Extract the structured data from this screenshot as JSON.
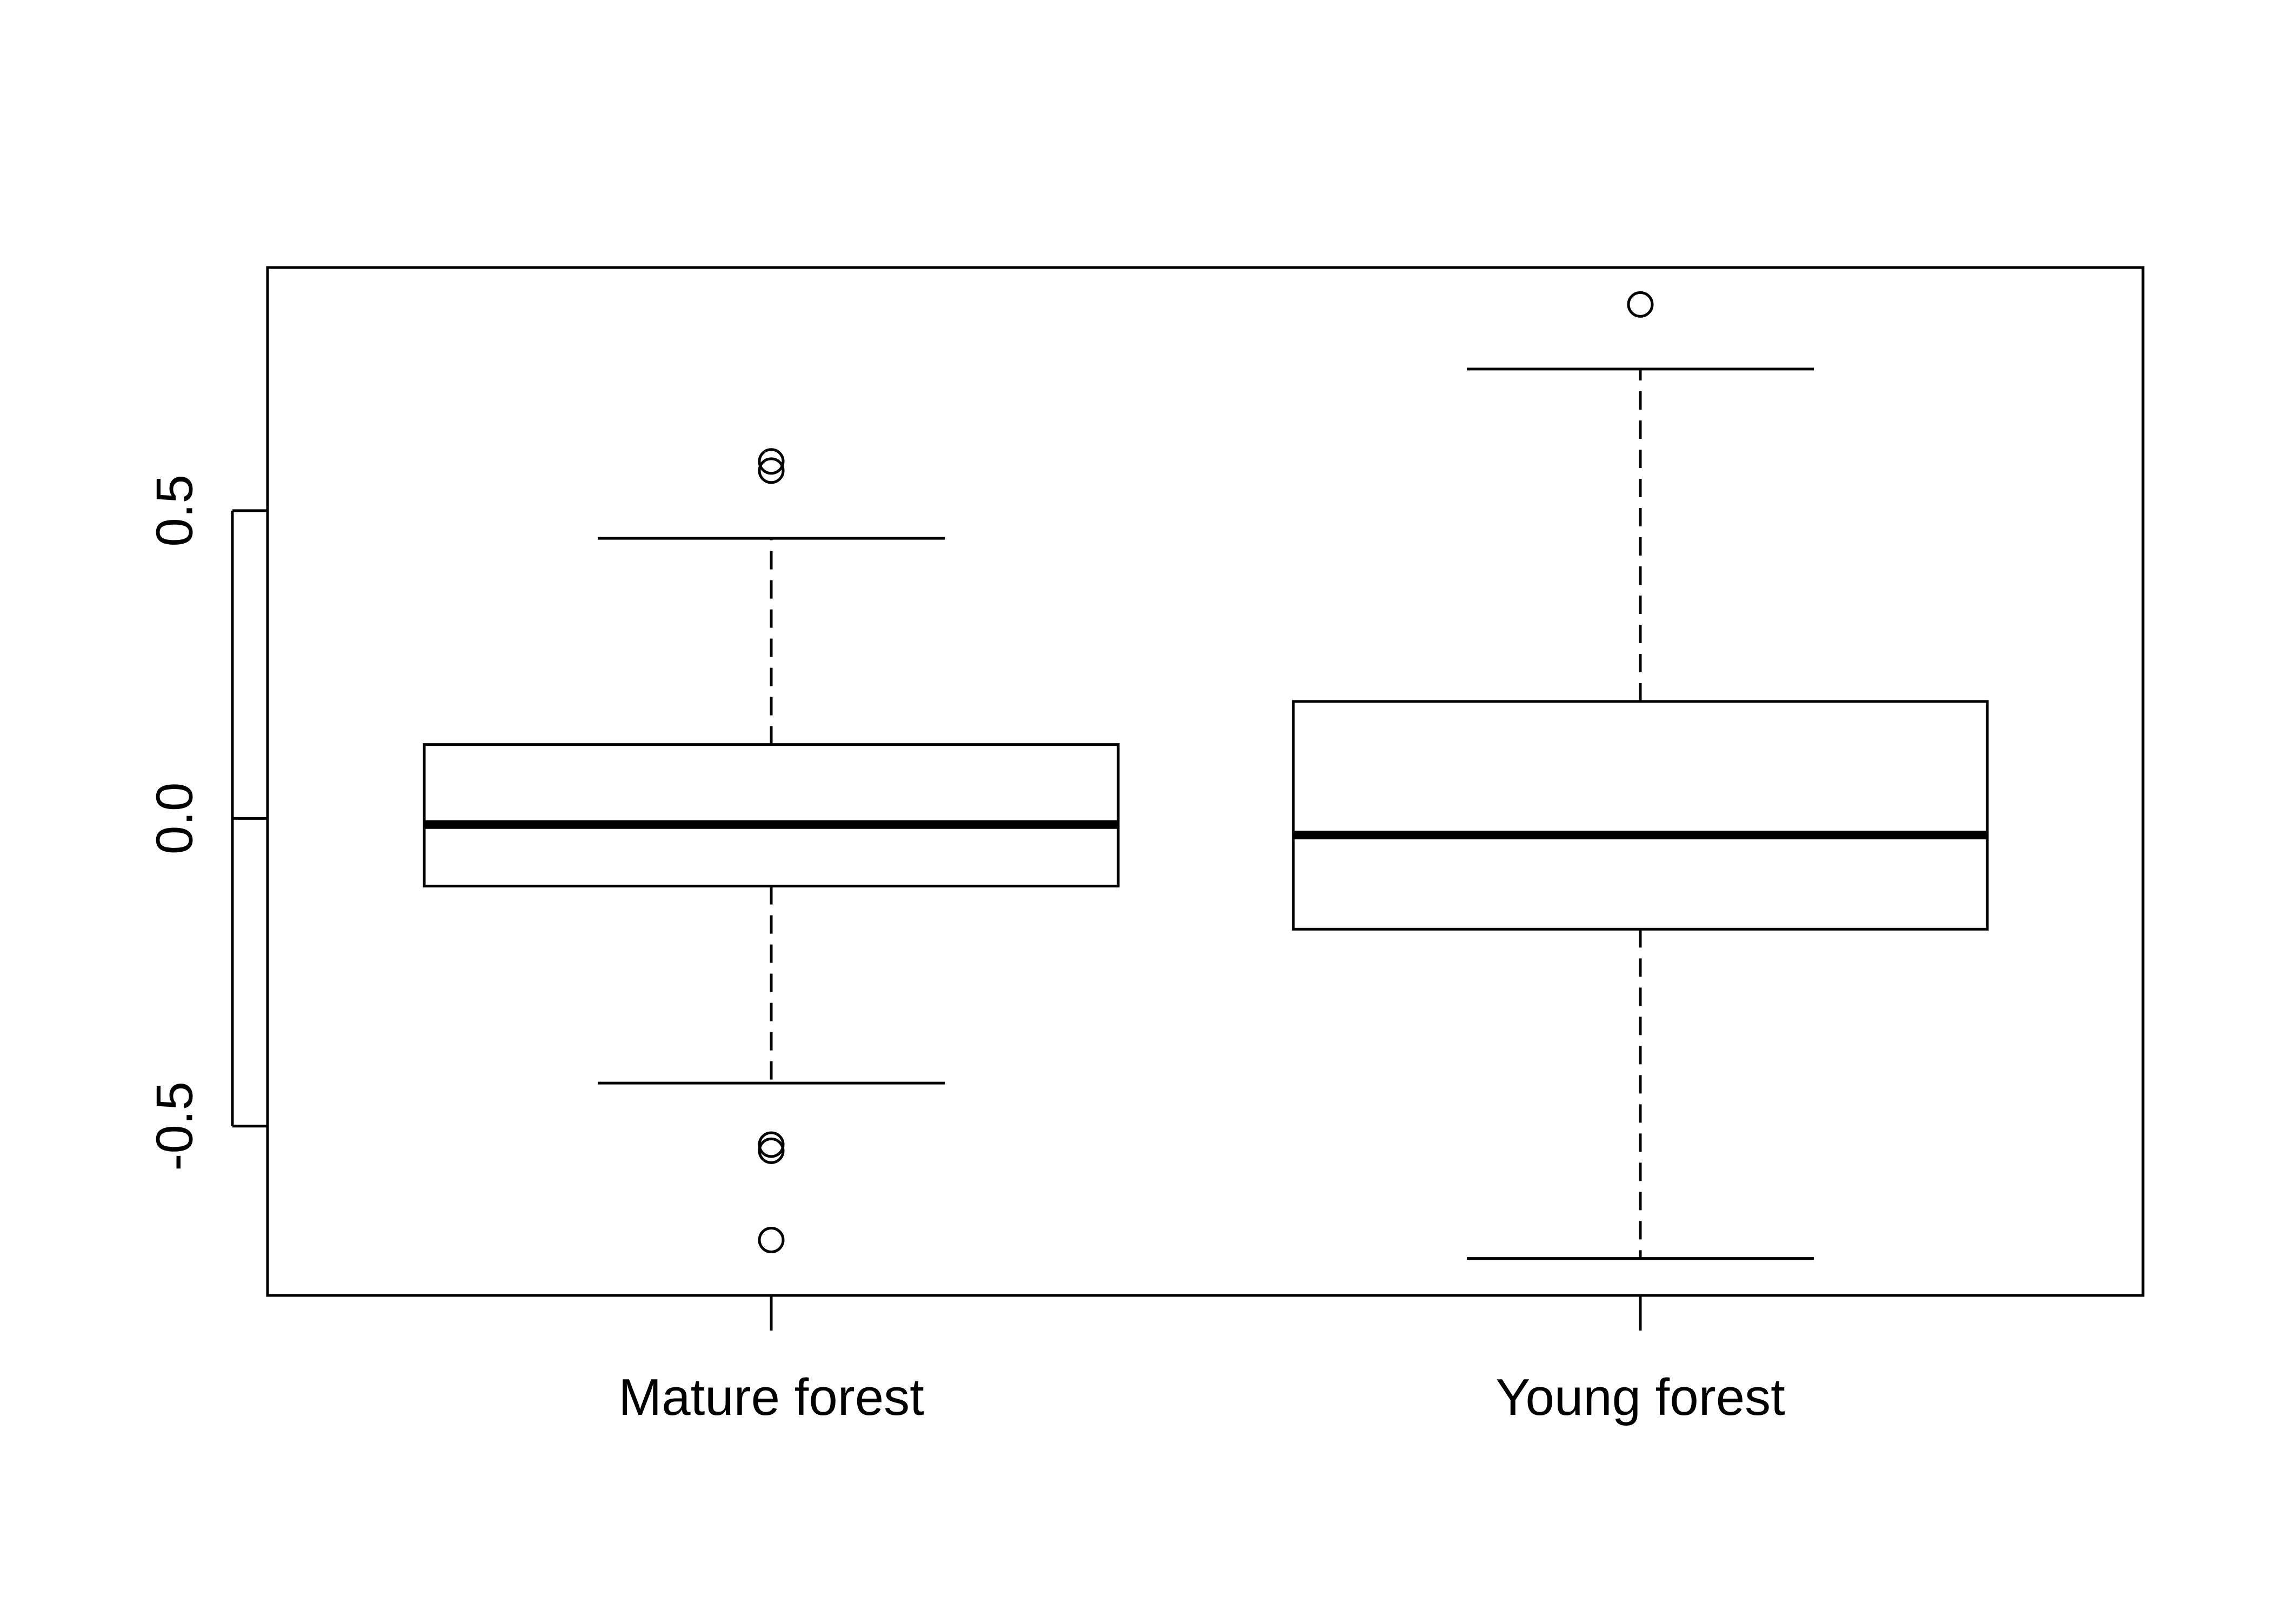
{
  "chart_data": {
    "type": "box",
    "categories": [
      "Mature forest",
      "Young forest"
    ],
    "yticks": [
      -0.5,
      0.0,
      0.5
    ],
    "ytick_labels": [
      "-0.5",
      "0.0",
      "0.5"
    ],
    "ylim": [
      -0.775,
      0.895
    ],
    "grid": false,
    "boxes": [
      {
        "name": "Mature forest",
        "whisker_low": -0.43,
        "q1": -0.11,
        "median": -0.01,
        "q3": 0.12,
        "whisker_high": 0.455,
        "outliers": [
          0.58,
          0.565,
          -0.53,
          -0.54,
          -0.685
        ]
      },
      {
        "name": "Young forest",
        "whisker_low": -0.715,
        "q1": -0.18,
        "median": -0.027,
        "q3": 0.19,
        "whisker_high": 0.73,
        "outliers": [
          0.835
        ]
      }
    ]
  }
}
